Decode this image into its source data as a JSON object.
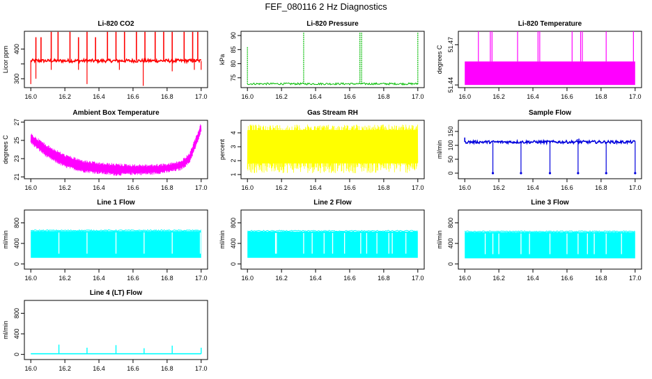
{
  "title": "FEF_080116  2 Hz Diagnostics",
  "chart_data": [
    {
      "id": "co2",
      "type": "line",
      "title": "Li-820 CO2",
      "xlabel": "",
      "ylabel": "Licor ppm",
      "color": "#ff0000",
      "xlim": [
        16.0,
        17.0
      ],
      "ylim": [
        270,
        460
      ],
      "xticks": [
        "16.0",
        "16.2",
        "16.4",
        "16.6",
        "16.8",
        "17.0"
      ],
      "yticks": [
        300,
        350,
        400
      ],
      "ytick_labels": [
        "300",
        "",
        "400"
      ],
      "baseline": 360,
      "band": [
        355,
        366
      ],
      "spikes": [
        [
          16.03,
          440
        ],
        [
          16.06,
          440
        ],
        [
          16.12,
          458
        ],
        [
          16.16,
          458
        ],
        [
          16.23,
          458
        ],
        [
          16.28,
          440
        ],
        [
          16.33,
          458
        ],
        [
          16.38,
          440
        ],
        [
          16.45,
          458
        ],
        [
          16.5,
          458
        ],
        [
          16.55,
          458
        ],
        [
          16.62,
          458
        ],
        [
          16.67,
          458
        ],
        [
          16.73,
          458
        ],
        [
          16.78,
          458
        ],
        [
          16.83,
          458
        ],
        [
          16.9,
          458
        ],
        [
          16.95,
          458
        ],
        [
          16.98,
          458
        ]
      ],
      "dips": [
        [
          16.0,
          282
        ],
        [
          16.03,
          300
        ],
        [
          16.12,
          330
        ],
        [
          16.28,
          330
        ],
        [
          16.33,
          282
        ],
        [
          16.52,
          330
        ],
        [
          16.66,
          276
        ],
        [
          16.83,
          325
        ],
        [
          16.96,
          330
        ],
        [
          17.0,
          330
        ]
      ]
    },
    {
      "id": "pressure",
      "type": "line",
      "title": "Li-820 Pressure",
      "xlabel": "",
      "ylabel": "kPa",
      "color": "#00bb00",
      "xlim": [
        16.0,
        17.0
      ],
      "ylim": [
        71.5,
        91.5
      ],
      "xticks": [
        "16.0",
        "16.2",
        "16.4",
        "16.6",
        "16.8",
        "17.0"
      ],
      "yticks": [
        75,
        80,
        85,
        90
      ],
      "ytick_labels": [
        "75",
        "80",
        "85",
        "90"
      ],
      "baseline": 72.8,
      "band": [
        72.5,
        73.2
      ],
      "spikes": [
        [
          16.0,
          86
        ],
        [
          16.33,
          91
        ],
        [
          16.66,
          91
        ],
        [
          16.67,
          91
        ],
        [
          17.0,
          91
        ]
      ],
      "dips": []
    },
    {
      "id": "temperature",
      "type": "line",
      "title": "Li-820 Temperature",
      "xlabel": "",
      "ylabel": "degrees C",
      "color": "#ff00ff",
      "xlim": [
        16.0,
        17.0
      ],
      "ylim": [
        51.438,
        51.48
      ],
      "xticks": [
        "16.0",
        "16.2",
        "16.4",
        "16.6",
        "16.8",
        "17.0"
      ],
      "yticks": [
        51.44,
        51.47
      ],
      "ytick_labels": [
        "51.44",
        "51.47"
      ],
      "baseline": 51.44,
      "band": [
        51.44,
        51.4575
      ],
      "spikes": [
        [
          16.08,
          51.48
        ],
        [
          16.15,
          51.48
        ],
        [
          16.16,
          51.48
        ],
        [
          16.31,
          51.48
        ],
        [
          16.43,
          51.48
        ],
        [
          16.44,
          51.48
        ],
        [
          16.63,
          51.48
        ],
        [
          16.68,
          51.48
        ],
        [
          16.69,
          51.48
        ],
        [
          16.83,
          51.48
        ],
        [
          16.99,
          51.48
        ]
      ],
      "dips": []
    },
    {
      "id": "ambient",
      "type": "line",
      "title": "Ambient Box Temperature",
      "xlabel": "",
      "ylabel": "degrees C",
      "color": "#ff00ff",
      "xlim": [
        16.0,
        17.0
      ],
      "ylim": [
        20.8,
        27.2
      ],
      "xticks": [
        "16.0",
        "16.2",
        "16.4",
        "16.6",
        "16.8",
        "17.0"
      ],
      "yticks": [
        21,
        23,
        25,
        27
      ],
      "ytick_labels": [
        "21",
        "23",
        "25",
        "27"
      ],
      "upper": [
        [
          16.0,
          25.8
        ],
        [
          16.1,
          24.5
        ],
        [
          16.2,
          23.5
        ],
        [
          16.3,
          22.9
        ],
        [
          16.4,
          22.6
        ],
        [
          16.5,
          22.5
        ],
        [
          16.6,
          22.4
        ],
        [
          16.7,
          22.4
        ],
        [
          16.8,
          22.5
        ],
        [
          16.88,
          22.8
        ],
        [
          16.93,
          23.6
        ],
        [
          16.97,
          25.5
        ],
        [
          17.0,
          27.0
        ]
      ],
      "lower": [
        [
          16.0,
          24.6
        ],
        [
          16.1,
          23.0
        ],
        [
          16.2,
          22.0
        ],
        [
          16.3,
          21.5
        ],
        [
          16.4,
          21.3
        ],
        [
          16.5,
          21.1
        ],
        [
          16.6,
          21.2
        ],
        [
          16.7,
          21.2
        ],
        [
          16.8,
          21.4
        ],
        [
          16.88,
          21.7
        ],
        [
          16.93,
          22.4
        ],
        [
          16.97,
          24.2
        ],
        [
          17.0,
          25.8
        ]
      ]
    },
    {
      "id": "rh",
      "type": "line",
      "title": "Gas Stream RH",
      "xlabel": "",
      "ylabel": "percent",
      "color": "#ffff00",
      "xlim": [
        16.0,
        17.0
      ],
      "ylim": [
        0.7,
        4.9
      ],
      "xticks": [
        "16.0",
        "16.2",
        "16.4",
        "16.6",
        "16.8",
        "17.0"
      ],
      "yticks": [
        1,
        2,
        3,
        4
      ],
      "ytick_labels": [
        "1",
        "2",
        "3",
        "4"
      ],
      "band": [
        1.1,
        4.6
      ]
    },
    {
      "id": "sampleflow",
      "type": "line",
      "title": "Sample Flow",
      "xlabel": "",
      "ylabel": "ml/min",
      "color": "#0000dd",
      "xlim": [
        16.0,
        17.0
      ],
      "ylim": [
        -20,
        190
      ],
      "xticks": [
        "16.0",
        "16.2",
        "16.4",
        "16.6",
        "16.8",
        "17.0"
      ],
      "yticks": [
        0,
        50,
        100,
        150
      ],
      "ytick_labels": [
        "0",
        "50",
        "100",
        "150"
      ],
      "baseline": 112,
      "band": [
        107,
        117
      ],
      "spikes": [
        [
          16.0,
          128
        ],
        [
          16.66,
          122
        ],
        [
          16.67,
          124
        ]
      ],
      "dips": [
        [
          16.165,
          0
        ],
        [
          16.33,
          0
        ],
        [
          16.5,
          0
        ],
        [
          16.665,
          0
        ],
        [
          16.83,
          0
        ],
        [
          17.0,
          0
        ]
      ]
    },
    {
      "id": "line1",
      "type": "line",
      "title": "Line 1 Flow",
      "xlabel": "",
      "ylabel": "ml/min",
      "color": "#00ffff",
      "xlim": [
        16.0,
        17.0
      ],
      "ylim": [
        -100,
        1050
      ],
      "xticks": [
        "16.0",
        "16.2",
        "16.4",
        "16.6",
        "16.8",
        "17.0"
      ],
      "yticks": [
        0,
        400,
        800
      ],
      "ytick_labels": [
        "0",
        "400",
        "800"
      ],
      "band": [
        120,
        640
      ],
      "gaps": [
        16.165,
        16.33,
        16.5,
        16.665,
        16.83,
        16.995
      ]
    },
    {
      "id": "line2",
      "type": "line",
      "title": "Line 2 Flow",
      "xlabel": "",
      "ylabel": "ml/min",
      "color": "#00ffff",
      "xlim": [
        16.0,
        17.0
      ],
      "ylim": [
        -100,
        1050
      ],
      "xticks": [
        "16.0",
        "16.2",
        "16.4",
        "16.6",
        "16.8",
        "17.0"
      ],
      "yticks": [
        0,
        400,
        800
      ],
      "ytick_labels": [
        "0",
        "400",
        "800"
      ],
      "band": [
        120,
        630
      ],
      "gaps": [
        16.165,
        16.17,
        16.33,
        16.38,
        16.45,
        16.5,
        16.57,
        16.665,
        16.7,
        16.76,
        16.83,
        16.85,
        16.93
      ]
    },
    {
      "id": "line3",
      "type": "line",
      "title": "Line 3 Flow",
      "xlabel": "",
      "ylabel": "ml/min",
      "color": "#00ffff",
      "xlim": [
        16.0,
        17.0
      ],
      "ylim": [
        -100,
        1050
      ],
      "xticks": [
        "16.0",
        "16.2",
        "16.4",
        "16.6",
        "16.8",
        "17.0"
      ],
      "yticks": [
        0,
        400,
        800
      ],
      "ytick_labels": [
        "0",
        "400",
        "800"
      ],
      "band": [
        110,
        620
      ],
      "gaps": [
        16.12,
        16.165,
        16.2,
        16.33,
        16.38,
        16.5,
        16.6,
        16.665,
        16.72,
        16.76,
        16.83,
        16.92
      ]
    },
    {
      "id": "line4",
      "type": "line",
      "title": "Line 4 (LT) Flow",
      "xlabel": "",
      "ylabel": "ml/min",
      "color": "#00ffff",
      "xlim": [
        16.0,
        17.0
      ],
      "ylim": [
        -100,
        1050
      ],
      "xticks": [
        "16.0",
        "16.2",
        "16.4",
        "16.6",
        "16.8",
        "17.0"
      ],
      "yticks": [
        0,
        400,
        800
      ],
      "ytick_labels": [
        "0",
        "400",
        "800"
      ],
      "baseline": 12,
      "spikes": [
        [
          16.165,
          190
        ],
        [
          16.33,
          130
        ],
        [
          16.5,
          180
        ],
        [
          16.665,
          120
        ],
        [
          16.83,
          170
        ],
        [
          17.0,
          130
        ]
      ]
    }
  ]
}
